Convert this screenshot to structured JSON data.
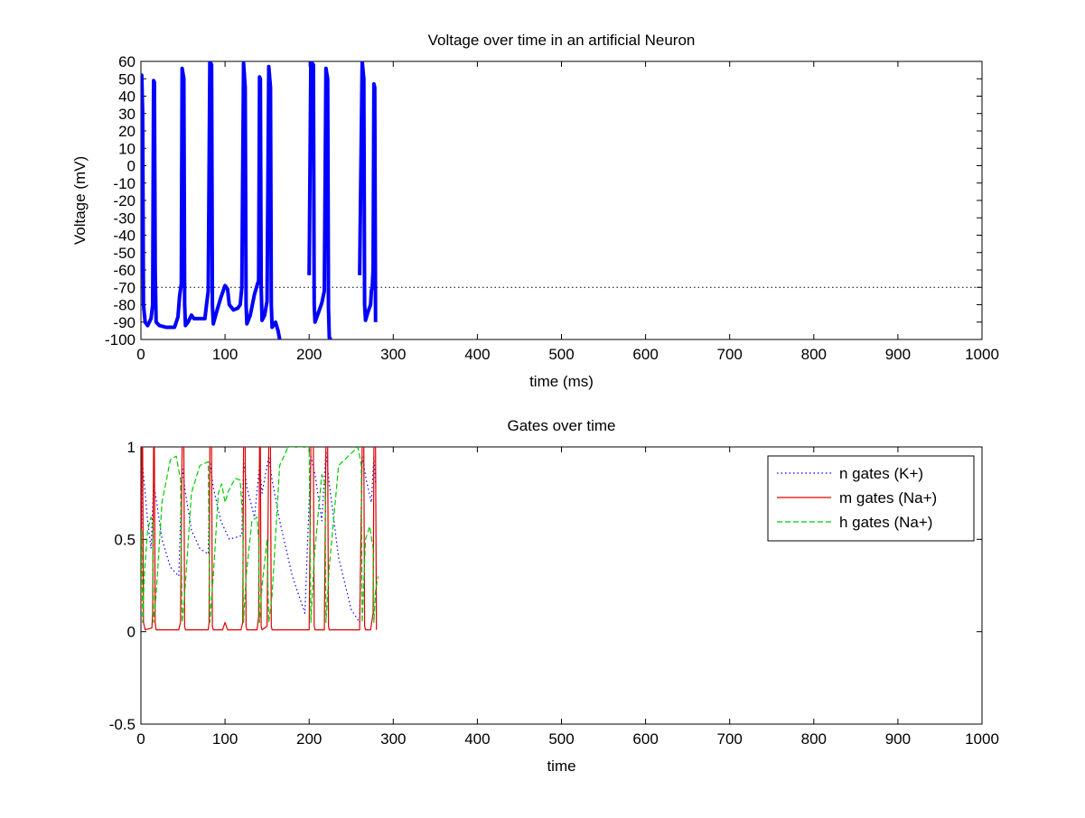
{
  "figure": {
    "background": "#ffffff"
  },
  "chart_data": [
    {
      "type": "line",
      "title": "Voltage over time in an artificial Neuron",
      "xlabel": "time (ms)",
      "ylabel": "Voltage (mV)",
      "xlim": [
        0,
        1000
      ],
      "ylim": [
        -100,
        60
      ],
      "x_ticks": [
        0,
        100,
        200,
        300,
        400,
        500,
        600,
        700,
        800,
        900,
        1000
      ],
      "y_ticks": [
        -100,
        -90,
        -80,
        -70,
        -60,
        -50,
        -40,
        -30,
        -20,
        -10,
        0,
        10,
        20,
        30,
        40,
        50,
        60
      ],
      "grid": false,
      "reference_line": {
        "y": -70,
        "style": "dotted",
        "color": "#000000"
      },
      "series": [
        {
          "color": "#0000ff",
          "line_style": "solid",
          "line_width": "thick",
          "points": [
            [
              0,
              -65
            ],
            [
              1,
              52
            ],
            [
              2,
              30
            ],
            [
              3,
              -80
            ],
            [
              5,
              -90
            ],
            [
              8,
              -92
            ],
            [
              12,
              -88
            ],
            [
              14,
              -80
            ],
            [
              15,
              49
            ],
            [
              16,
              48
            ],
            [
              17,
              -60
            ],
            [
              18,
              -90
            ],
            [
              22,
              -92
            ],
            [
              30,
              -93
            ],
            [
              40,
              -93
            ],
            [
              44,
              -87
            ],
            [
              46,
              -75
            ],
            [
              48,
              -68
            ],
            [
              49,
              56
            ],
            [
              51,
              50
            ],
            [
              52,
              -80
            ],
            [
              53,
              -92
            ],
            [
              56,
              -90
            ],
            [
              60,
              -86
            ],
            [
              63,
              -88
            ],
            [
              70,
              -88
            ],
            [
              76,
              -88
            ],
            [
              78,
              -80
            ],
            [
              80,
              -72
            ],
            [
              82,
              60
            ],
            [
              84,
              58
            ],
            [
              85,
              -80
            ],
            [
              86,
              -91
            ],
            [
              90,
              -84
            ],
            [
              95,
              -76
            ],
            [
              100,
              -69
            ],
            [
              103,
              -71
            ],
            [
              105,
              -80
            ],
            [
              110,
              -83
            ],
            [
              115,
              -82
            ],
            [
              118,
              -80
            ],
            [
              120,
              -70
            ],
            [
              122,
              59
            ],
            [
              124,
              45
            ],
            [
              125,
              -80
            ],
            [
              126,
              -91
            ],
            [
              130,
              -86
            ],
            [
              135,
              -74
            ],
            [
              138,
              -69
            ],
            [
              140,
              -66
            ],
            [
              141,
              51
            ],
            [
              142,
              50
            ],
            [
              143,
              -70
            ],
            [
              144,
              -89
            ],
            [
              147,
              -86
            ],
            [
              150,
              -78
            ],
            [
              152,
              57
            ],
            [
              154,
              45
            ],
            [
              155,
              -80
            ],
            [
              156,
              -93
            ],
            [
              160,
              -90
            ],
            [
              163,
              -95
            ],
            [
              165,
              -100
            ],
            [
              166,
              null
            ],
            [
              200,
              -63
            ],
            [
              202,
              60
            ],
            [
              205,
              58
            ],
            [
              206,
              -80
            ],
            [
              207,
              -90
            ],
            [
              210,
              -86
            ],
            [
              215,
              -79
            ],
            [
              218,
              -72
            ],
            [
              220,
              56
            ],
            [
              222,
              50
            ],
            [
              223,
              -82
            ],
            [
              224,
              -99
            ],
            [
              226,
              -100
            ],
            [
              227,
              null
            ],
            [
              260,
              -63
            ],
            [
              263,
              60
            ],
            [
              265,
              50
            ],
            [
              266,
              -80
            ],
            [
              267,
              -89
            ],
            [
              270,
              -84
            ],
            [
              273,
              -80
            ],
            [
              274,
              -72
            ],
            [
              275,
              -70
            ],
            [
              276,
              -60
            ],
            [
              277,
              47
            ],
            [
              278,
              45
            ],
            [
              279,
              -90
            ]
          ]
        }
      ]
    },
    {
      "type": "line",
      "title": "Gates over time",
      "xlabel": "time",
      "ylabel": "",
      "xlim": [
        0,
        1000
      ],
      "ylim": [
        -0.5,
        1
      ],
      "x_ticks": [
        0,
        100,
        200,
        300,
        400,
        500,
        600,
        700,
        800,
        900,
        1000
      ],
      "y_ticks": [
        -0.5,
        0,
        0.5,
        1
      ],
      "grid": false,
      "legend": {
        "placement": "top-right",
        "entries": [
          "n gates (K+)",
          "m gates (Na+)",
          "h gates (Na+)"
        ]
      },
      "series": [
        {
          "name": "n gates (K+)",
          "color": "#0000ff",
          "line_style": "dotted",
          "points": [
            [
              0,
              0.32
            ],
            [
              2,
              0.9
            ],
            [
              4,
              0.8
            ],
            [
              8,
              0.6
            ],
            [
              12,
              0.45
            ],
            [
              15,
              0.8
            ],
            [
              18,
              0.72
            ],
            [
              25,
              0.5
            ],
            [
              35,
              0.35
            ],
            [
              45,
              0.3
            ],
            [
              49,
              0.9
            ],
            [
              52,
              0.78
            ],
            [
              60,
              0.55
            ],
            [
              70,
              0.45
            ],
            [
              80,
              0.42
            ],
            [
              82,
              0.92
            ],
            [
              86,
              0.78
            ],
            [
              95,
              0.6
            ],
            [
              105,
              0.5
            ],
            [
              120,
              0.52
            ],
            [
              122,
              0.92
            ],
            [
              126,
              0.78
            ],
            [
              135,
              0.62
            ],
            [
              141,
              0.9
            ],
            [
              144,
              0.75
            ],
            [
              152,
              0.95
            ],
            [
              156,
              0.82
            ],
            [
              165,
              0.6
            ],
            [
              180,
              0.3
            ],
            [
              195,
              0.1
            ],
            [
              202,
              0.95
            ],
            [
              207,
              0.85
            ],
            [
              215,
              0.6
            ],
            [
              220,
              0.98
            ],
            [
              224,
              0.8
            ],
            [
              235,
              0.4
            ],
            [
              250,
              0.12
            ],
            [
              260,
              0.05
            ],
            [
              263,
              0.95
            ],
            [
              268,
              0.82
            ],
            [
              274,
              0.7
            ],
            [
              277,
              0.95
            ],
            [
              279,
              0.8
            ]
          ]
        },
        {
          "name": "m gates (Na+)",
          "color": "#e00000",
          "line_style": "solid",
          "points": [
            [
              0,
              0.12
            ],
            [
              1,
              1
            ],
            [
              2,
              1
            ],
            [
              3,
              0.05
            ],
            [
              5,
              0.01
            ],
            [
              13,
              0.02
            ],
            [
              14,
              0.1
            ],
            [
              15,
              1
            ],
            [
              16,
              1
            ],
            [
              17,
              0.05
            ],
            [
              18,
              0.01
            ],
            [
              45,
              0.01
            ],
            [
              47,
              0.05
            ],
            [
              49,
              1
            ],
            [
              51,
              1
            ],
            [
              52,
              0.03
            ],
            [
              53,
              0.01
            ],
            [
              80,
              0.01
            ],
            [
              81,
              0.05
            ],
            [
              82,
              1
            ],
            [
              84,
              1
            ],
            [
              85,
              0.03
            ],
            [
              86,
              0.01
            ],
            [
              97,
              0.01
            ],
            [
              100,
              0.05
            ],
            [
              103,
              0.01
            ],
            [
              119,
              0.01
            ],
            [
              121,
              0.05
            ],
            [
              122,
              1
            ],
            [
              124,
              1
            ],
            [
              125,
              0.03
            ],
            [
              126,
              0.01
            ],
            [
              138,
              0.01
            ],
            [
              140,
              0.08
            ],
            [
              141,
              1
            ],
            [
              142,
              1
            ],
            [
              143,
              0.03
            ],
            [
              144,
              0.01
            ],
            [
              150,
              0.03
            ],
            [
              152,
              1
            ],
            [
              154,
              1
            ],
            [
              155,
              0.03
            ],
            [
              156,
              0.01
            ],
            [
              200,
              0.01
            ],
            [
              202,
              1
            ],
            [
              205,
              1
            ],
            [
              206,
              0.03
            ],
            [
              207,
              0.01
            ],
            [
              218,
              0.01
            ],
            [
              220,
              1
            ],
            [
              222,
              1
            ],
            [
              223,
              0.03
            ],
            [
              224,
              0.01
            ],
            [
              260,
              0.01
            ],
            [
              263,
              1
            ],
            [
              265,
              1
            ],
            [
              266,
              0.03
            ],
            [
              267,
              0.01
            ],
            [
              273,
              0.01
            ],
            [
              276,
              0.1
            ],
            [
              277,
              1
            ],
            [
              279,
              1
            ],
            [
              280,
              0.01
            ]
          ]
        },
        {
          "name": "h gates (Na+)",
          "color": "#00cc00",
          "line_style": "dashed",
          "points": [
            [
              0,
              0.2
            ],
            [
              1,
              0.55
            ],
            [
              2,
              0.05
            ],
            [
              4,
              0.3
            ],
            [
              8,
              0.55
            ],
            [
              12,
              0.62
            ],
            [
              14,
              0.6
            ],
            [
              15,
              0.05
            ],
            [
              18,
              0.2
            ],
            [
              25,
              0.7
            ],
            [
              35,
              0.93
            ],
            [
              42,
              0.95
            ],
            [
              47,
              0.82
            ],
            [
              49,
              0.05
            ],
            [
              52,
              0.2
            ],
            [
              60,
              0.75
            ],
            [
              70,
              0.9
            ],
            [
              80,
              0.92
            ],
            [
              82,
              0.05
            ],
            [
              86,
              0.3
            ],
            [
              92,
              0.75
            ],
            [
              96,
              0.8
            ],
            [
              100,
              0.7
            ],
            [
              104,
              0.76
            ],
            [
              112,
              0.83
            ],
            [
              118,
              0.82
            ],
            [
              121,
              0.6
            ],
            [
              122,
              0.05
            ],
            [
              125,
              0.3
            ],
            [
              132,
              0.6
            ],
            [
              138,
              0.62
            ],
            [
              140,
              0.5
            ],
            [
              141,
              0.05
            ],
            [
              144,
              0.25
            ],
            [
              150,
              0.5
            ],
            [
              152,
              0.05
            ],
            [
              156,
              0.2
            ],
            [
              165,
              0.9
            ],
            [
              175,
              1
            ],
            [
              200,
              1
            ],
            [
              202,
              0.05
            ],
            [
              206,
              0.4
            ],
            [
              215,
              0.85
            ],
            [
              219,
              0.8
            ],
            [
              220,
              0.05
            ],
            [
              224,
              0.35
            ],
            [
              235,
              0.9
            ],
            [
              258,
              1
            ],
            [
              262,
              0.9
            ],
            [
              263,
              0.05
            ],
            [
              267,
              0.5
            ],
            [
              272,
              0.57
            ],
            [
              276,
              0.45
            ],
            [
              277,
              0.05
            ],
            [
              279,
              0.22
            ],
            [
              282,
              0.3
            ]
          ]
        }
      ]
    }
  ]
}
